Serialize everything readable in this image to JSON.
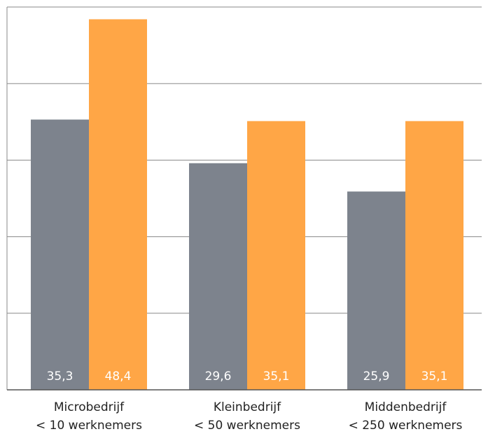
{
  "chart_data": {
    "type": "bar",
    "categories": [
      [
        "Microbedrijf",
        "< 10 werknemers"
      ],
      [
        "Kleinbedrijf",
        "< 50 werknemers"
      ],
      [
        "Middenbedrijf",
        "< 250 werknemers"
      ]
    ],
    "series": [
      {
        "values": [
          35.3,
          29.6,
          25.9
        ],
        "labels": [
          "35,3",
          "29,6",
          "25,9"
        ],
        "color": "#7d838d"
      },
      {
        "values": [
          48.4,
          35.1,
          35.1
        ],
        "labels": [
          "48,4",
          "35,1",
          "35,1"
        ],
        "color": "#ffa646"
      }
    ],
    "ylim": [
      0,
      50
    ],
    "grid": true,
    "gridline_color": "#8a8a8a"
  }
}
